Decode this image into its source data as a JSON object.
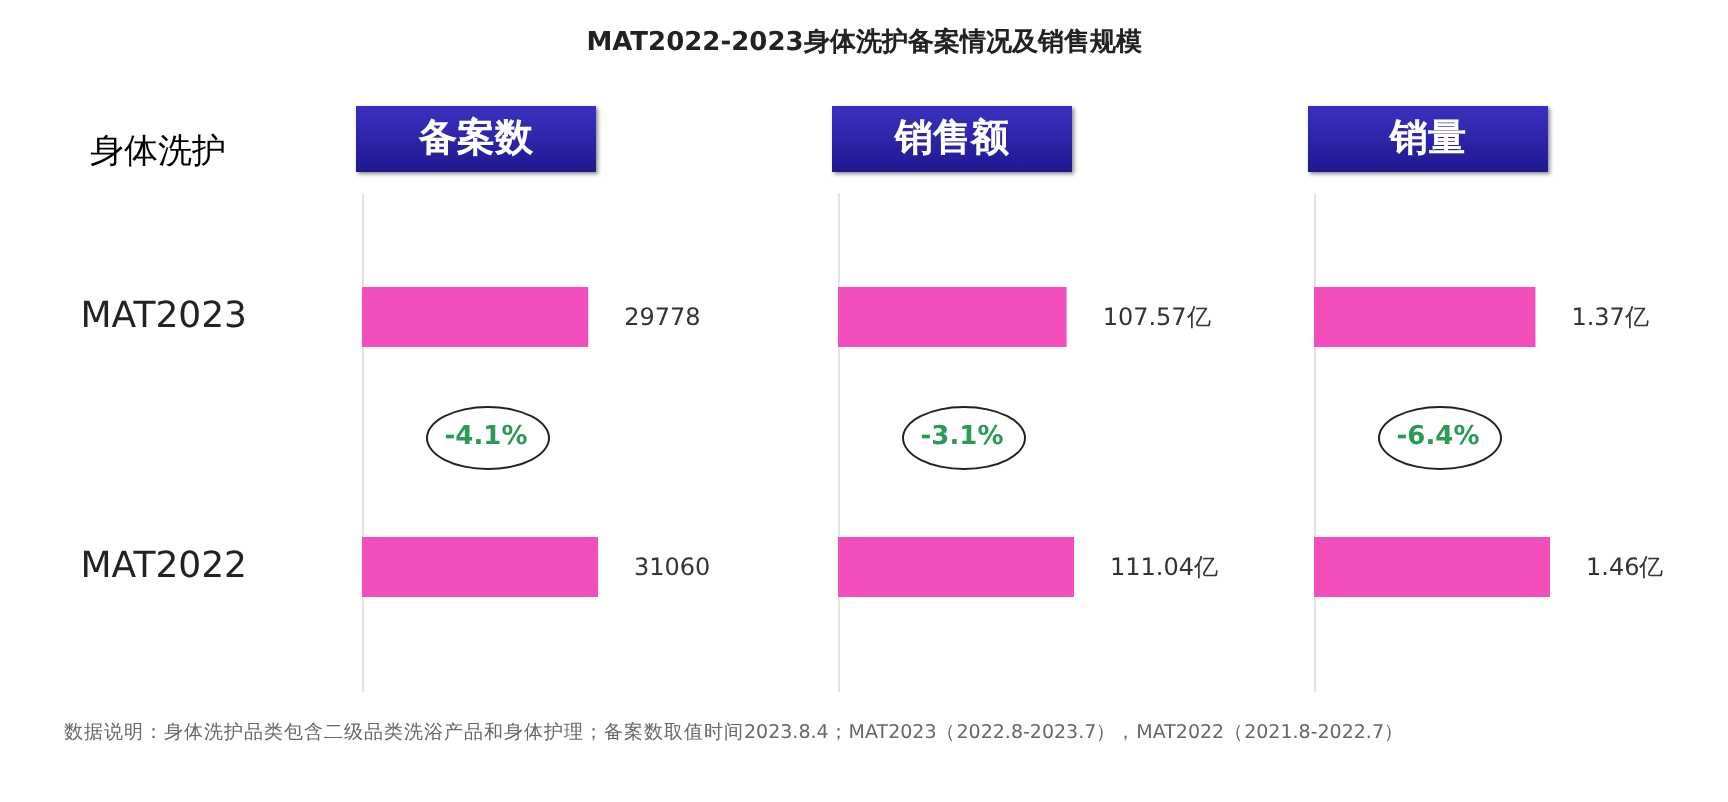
{
  "chart_data": [
    {
      "type": "bar",
      "orientation": "horizontal",
      "title": "备案数",
      "ylabel": "身体洗护",
      "categories": [
        "MAT2023",
        "MAT2022"
      ],
      "values": [
        29778,
        31060
      ],
      "color": "#f24fbd",
      "data_labels": true,
      "annotations": [
        "-4.1%",
        "MAT2022-2023身体洗护备案情况及销售规模",
        "数据说明：身体洗护品类包含二级品类洗浴产品和身体护理；备案数取值时间2023.8.4；MAT2023（2022.8-2023.7），MAT2022（2021.8-2022.7）"
      ]
    },
    {
      "type": "bar",
      "orientation": "horizontal",
      "title": "销售额",
      "categories": [
        null,
        null
      ],
      "values": [
        107.57,
        111.04
      ],
      "value_labels": [
        "107.57亿",
        "111.04亿"
      ],
      "color": "#f24fbd",
      "annotations": [
        "-3.1%"
      ]
    },
    {
      "type": "bar",
      "orientation": "horizontal",
      "title": "销量",
      "categories": [
        null,
        null
      ],
      "values": [
        1.37,
        1.46
      ],
      "value_labels": [
        "1.37亿",
        "1.46亿"
      ],
      "color": "#f24fbd",
      "annotations": [
        "-6.4%"
      ]
    }
  ]
}
